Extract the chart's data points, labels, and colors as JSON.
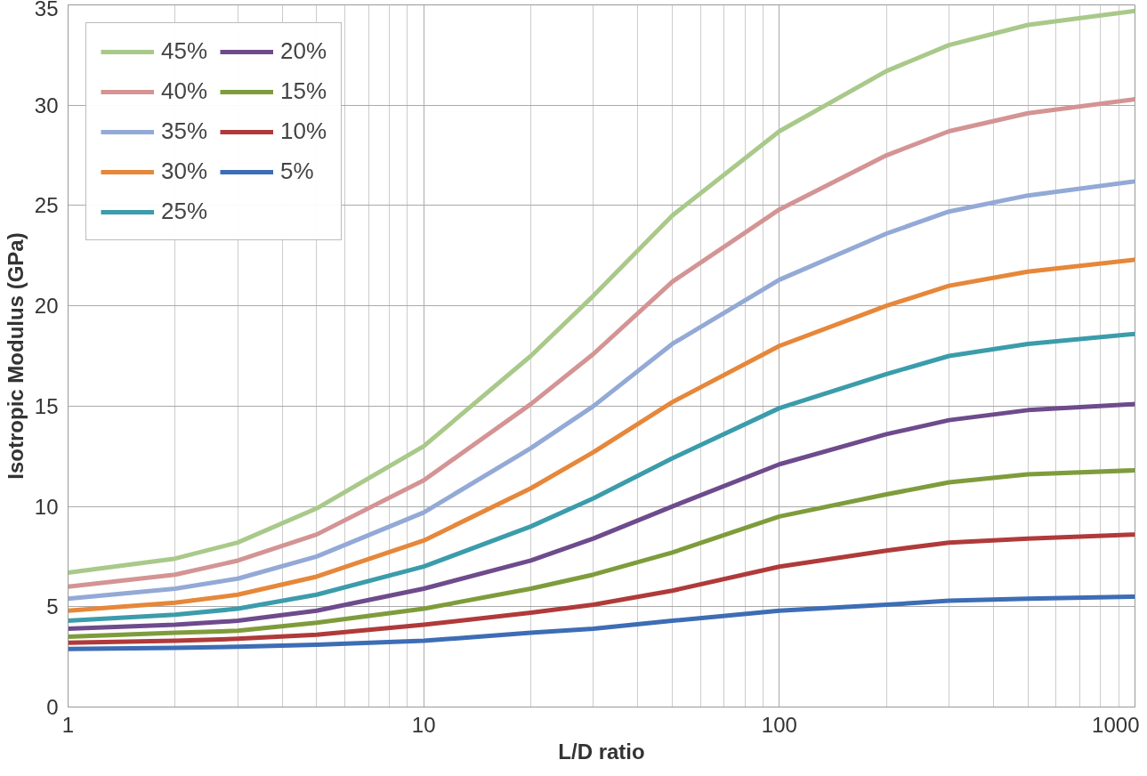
{
  "chart_data": {
    "type": "line",
    "xlabel": "L/D ratio",
    "ylabel": "Isotropic Modulus (GPa)",
    "log": "x",
    "grid": true,
    "legend": "top left",
    "line_style": "solid",
    "marker": "none",
    "x": [
      1,
      2,
      3,
      5,
      10,
      20,
      30,
      50,
      100,
      200,
      300,
      500,
      1000
    ],
    "xlim": [
      1,
      1000
    ],
    "xticks": [
      1,
      10,
      100,
      1000
    ],
    "ylim": [
      0,
      35
    ],
    "yticks": [
      0,
      5,
      10,
      15,
      20,
      25,
      30,
      35
    ],
    "series": [
      {
        "name": "45%",
        "color": "#a9c98a",
        "values": [
          6.7,
          7.4,
          8.2,
          9.9,
          13.0,
          17.5,
          20.5,
          24.5,
          28.7,
          31.7,
          33.0,
          34.0,
          34.7
        ]
      },
      {
        "name": "40%",
        "color": "#d49494",
        "values": [
          6.0,
          6.6,
          7.3,
          8.6,
          11.3,
          15.1,
          17.6,
          21.2,
          24.8,
          27.5,
          28.7,
          29.6,
          30.3
        ]
      },
      {
        "name": "35%",
        "color": "#93a9d6",
        "values": [
          5.4,
          5.9,
          6.4,
          7.5,
          9.7,
          12.9,
          15.0,
          18.1,
          21.3,
          23.6,
          24.7,
          25.5,
          26.2
        ]
      },
      {
        "name": "30%",
        "color": "#e6873a",
        "values": [
          4.8,
          5.2,
          5.6,
          6.5,
          8.3,
          10.9,
          12.7,
          15.2,
          18.0,
          20.0,
          21.0,
          21.7,
          22.3
        ]
      },
      {
        "name": "25%",
        "color": "#3b9cab",
        "values": [
          4.3,
          4.6,
          4.9,
          5.6,
          7.0,
          9.0,
          10.4,
          12.4,
          14.9,
          16.6,
          17.5,
          18.1,
          18.6
        ]
      },
      {
        "name": "20%",
        "color": "#6e4b8c",
        "values": [
          3.9,
          4.1,
          4.3,
          4.8,
          5.9,
          7.3,
          8.4,
          10.0,
          12.1,
          13.6,
          14.3,
          14.8,
          15.1
        ]
      },
      {
        "name": "15%",
        "color": "#7f9c3c",
        "values": [
          3.5,
          3.7,
          3.8,
          4.2,
          4.9,
          5.9,
          6.6,
          7.7,
          9.5,
          10.6,
          11.2,
          11.6,
          11.8
        ]
      },
      {
        "name": "10%",
        "color": "#b03a3a",
        "values": [
          3.2,
          3.3,
          3.4,
          3.6,
          4.1,
          4.7,
          5.1,
          5.8,
          7.0,
          7.8,
          8.2,
          8.4,
          8.6
        ]
      },
      {
        "name": "5%",
        "color": "#3d6db5",
        "values": [
          2.9,
          2.95,
          3.0,
          3.1,
          3.3,
          3.7,
          3.9,
          4.3,
          4.8,
          5.1,
          5.3,
          5.4,
          5.5
        ]
      }
    ]
  }
}
